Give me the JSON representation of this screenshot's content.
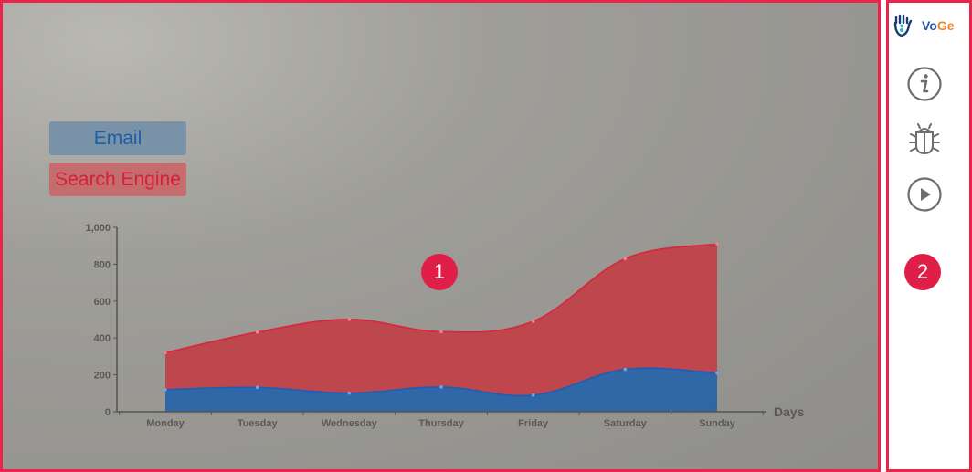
{
  "chart_data": {
    "type": "area",
    "stacked": true,
    "categories": [
      "Monday",
      "Tuesday",
      "Wednesday",
      "Thursday",
      "Friday",
      "Saturday",
      "Sunday"
    ],
    "series": [
      {
        "name": "Email",
        "values": [
          120,
          132,
          101,
          134,
          90,
          230,
          210
        ],
        "color": "#2a64a8"
      },
      {
        "name": "Search Engine",
        "values": [
          200,
          300,
          400,
          300,
          400,
          600,
          700
        ],
        "color": "#c43a44"
      }
    ],
    "yticks": [
      "0",
      "200",
      "400",
      "600",
      "800",
      "1,000"
    ],
    "ylim": [
      0,
      1000
    ],
    "xlabel": "Days",
    "ylabel": "",
    "legend": "top-left"
  },
  "legend": {
    "email": "Email",
    "search": "Search Engine"
  },
  "badges": {
    "one": "1",
    "two": "2"
  },
  "sidebar": {
    "brand_vo": "Vo",
    "brand_ge": "Ge",
    "items": [
      {
        "icon": "info-icon"
      },
      {
        "icon": "bug-icon"
      },
      {
        "icon": "play-icon"
      }
    ]
  }
}
